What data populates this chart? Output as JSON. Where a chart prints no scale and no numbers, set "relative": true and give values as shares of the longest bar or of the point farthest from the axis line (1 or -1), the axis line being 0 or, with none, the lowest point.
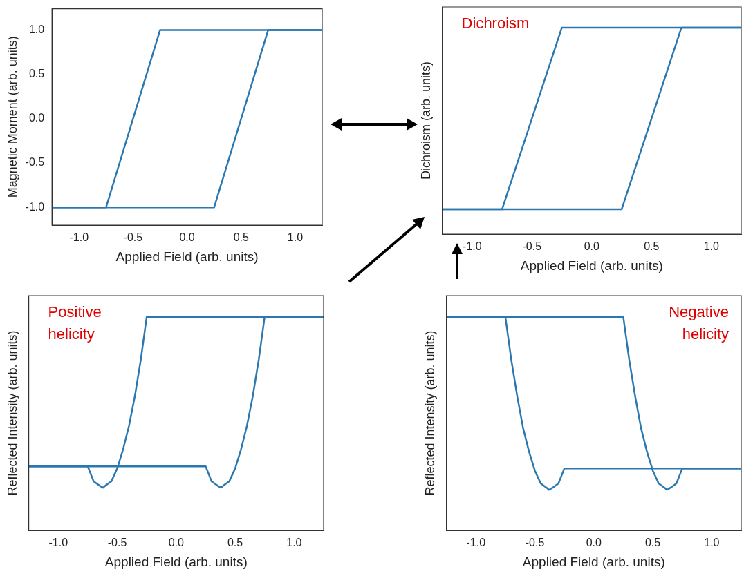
{
  "chart_data": [
    {
      "type": "line",
      "xlabel": "Applied Field (arb. units)",
      "ylabel": "Magnetic Moment (arb. units)",
      "xlim": [
        -1.25,
        1.25
      ],
      "xticks": [
        {
          "value": -1,
          "label": "-1.0"
        },
        {
          "value": -0.5,
          "label": "-0.5"
        },
        {
          "value": 0,
          "label": "0.0"
        },
        {
          "value": 0.5,
          "label": "0.5"
        },
        {
          "value": 1,
          "label": "1.0"
        }
      ],
      "ylim": [
        -1.2,
        1.24
      ],
      "yticks": [
        {
          "value": -1,
          "label": "-1.0"
        },
        {
          "value": -0.5,
          "label": "-0.5"
        },
        {
          "value": 0,
          "label": "0.0"
        },
        {
          "value": 0.5,
          "label": "0.5"
        },
        {
          "value": 1,
          "label": "1.0"
        }
      ],
      "grid": false,
      "legend": false,
      "series": [
        {
          "color": "#2b78b0",
          "x": [
            -1.25,
            0.25,
            0.75,
            1.25
          ],
          "values": [
            -1,
            -1,
            1,
            1
          ]
        },
        {
          "color": "#2b78b0",
          "x": [
            -1.25,
            -0.75,
            -0.25,
            1.25
          ],
          "values": [
            -1,
            -1,
            1,
            1
          ]
        }
      ]
    },
    {
      "type": "line",
      "relative": true,
      "xlabel": "Applied Field (arb. units)",
      "ylabel": "Dichroism (arb. units)",
      "xlim": [
        -1.25,
        1.25
      ],
      "xticks": [
        {
          "value": -1,
          "label": "-1.0"
        },
        {
          "value": -0.5,
          "label": "-0.5"
        },
        {
          "value": 0,
          "label": "0.0"
        },
        {
          "value": 0.5,
          "label": "0.5"
        },
        {
          "value": 1,
          "label": "1.0"
        }
      ],
      "grid": false,
      "legend": false,
      "annotations": [
        "Dichroism"
      ],
      "series": [
        {
          "color": "#2b78b0",
          "x": [
            -1.25,
            0.25,
            0.75,
            1.25
          ],
          "values": [
            0.12,
            0.12,
            1,
            1
          ]
        },
        {
          "color": "#2b78b0",
          "x": [
            -1.25,
            -0.75,
            -0.25,
            1.25
          ],
          "values": [
            0.12,
            0.12,
            1,
            1
          ]
        }
      ]
    },
    {
      "type": "line",
      "relative": true,
      "xlabel": "Applied Field (arb. units)",
      "ylabel": "Reflected Intensity (arb. units)",
      "xlim": [
        -1.25,
        1.25
      ],
      "xticks": [
        {
          "value": -1,
          "label": "-1.0"
        },
        {
          "value": -0.5,
          "label": "-0.5"
        },
        {
          "value": 0,
          "label": "0.0"
        },
        {
          "value": 0.5,
          "label": "0.5"
        },
        {
          "value": 1,
          "label": "1.0"
        }
      ],
      "grid": false,
      "legend": false,
      "annotations": [
        "Positive helicity"
      ],
      "series": [
        {
          "color": "#2b78b0",
          "x": [
            -1.25,
            -0.75,
            -0.7,
            -0.65,
            -0.62,
            -0.6,
            -0.55,
            -0.5,
            -0.45,
            -0.4,
            -0.35,
            -0.3,
            -0.25,
            1.25
          ],
          "values": [
            0.3,
            0.3,
            0.23,
            0.21,
            0.2,
            0.21,
            0.23,
            0.29,
            0.38,
            0.49,
            0.63,
            0.8,
            1,
            1
          ]
        },
        {
          "color": "#2b78b0",
          "x": [
            -1.25,
            0.25,
            0.3,
            0.35,
            0.38,
            0.4,
            0.45,
            0.5,
            0.55,
            0.6,
            0.65,
            0.7,
            0.75,
            1.25
          ],
          "values": [
            0.3,
            0.3,
            0.23,
            0.21,
            0.2,
            0.21,
            0.23,
            0.29,
            0.38,
            0.49,
            0.63,
            0.8,
            1,
            1
          ]
        }
      ]
    },
    {
      "type": "line",
      "relative": true,
      "xlabel": "Applied Field (arb. units)",
      "ylabel": "Reflected Intensity (arb. units)",
      "xlim": [
        -1.25,
        1.25
      ],
      "xticks": [
        {
          "value": -1,
          "label": "-1.0"
        },
        {
          "value": -0.5,
          "label": "-0.5"
        },
        {
          "value": 0,
          "label": "0.0"
        },
        {
          "value": 0.5,
          "label": "0.5"
        },
        {
          "value": 1,
          "label": "1.0"
        }
      ],
      "grid": false,
      "legend": false,
      "annotations": [
        "Negative helicity"
      ],
      "series": [
        {
          "color": "#2b78b0",
          "x": [
            -1.25,
            -0.75,
            -0.7,
            -0.65,
            -0.6,
            -0.55,
            -0.5,
            -0.45,
            -0.4,
            -0.38,
            -0.35,
            -0.3,
            -0.25,
            1.25
          ],
          "values": [
            1,
            1,
            0.8,
            0.63,
            0.48,
            0.37,
            0.28,
            0.22,
            0.2,
            0.19,
            0.2,
            0.22,
            0.29,
            0.29
          ]
        },
        {
          "color": "#2b78b0",
          "x": [
            -1.25,
            0.25,
            0.3,
            0.35,
            0.4,
            0.45,
            0.5,
            0.55,
            0.6,
            0.62,
            0.65,
            0.7,
            0.75,
            1.25
          ],
          "values": [
            1,
            1,
            0.8,
            0.63,
            0.48,
            0.37,
            0.28,
            0.22,
            0.2,
            0.19,
            0.2,
            0.22,
            0.29,
            0.29
          ]
        }
      ]
    }
  ]
}
